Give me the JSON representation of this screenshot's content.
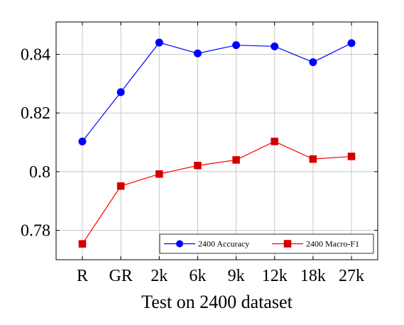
{
  "chart_data": {
    "type": "line",
    "xlabel": "Test on 2400 dataset",
    "ylabel": "",
    "categories": [
      "R",
      "GR",
      "2k",
      "6k",
      "9k",
      "12k",
      "18k",
      "27k"
    ],
    "ylim": [
      0.77,
      0.851
    ],
    "yticks": [
      0.78,
      0.8,
      0.82,
      0.84
    ],
    "ytick_labels": [
      "0.78",
      "0.8",
      "0.82",
      "0.84"
    ],
    "grid": true,
    "legend_position": "bottom-right",
    "series": [
      {
        "name": "2400 Accuracy",
        "color": "#0000ff",
        "marker": "circle",
        "values": [
          0.8103,
          0.8271,
          0.844,
          0.8403,
          0.8431,
          0.8427,
          0.8373,
          0.8438
        ]
      },
      {
        "name": "2400 Macro-F1",
        "color": "#ff0000",
        "marker_fill": "#cc0000",
        "marker": "square",
        "values": [
          0.7754,
          0.7951,
          0.7992,
          0.8021,
          0.804,
          0.8103,
          0.8043,
          0.8052
        ]
      }
    ]
  }
}
